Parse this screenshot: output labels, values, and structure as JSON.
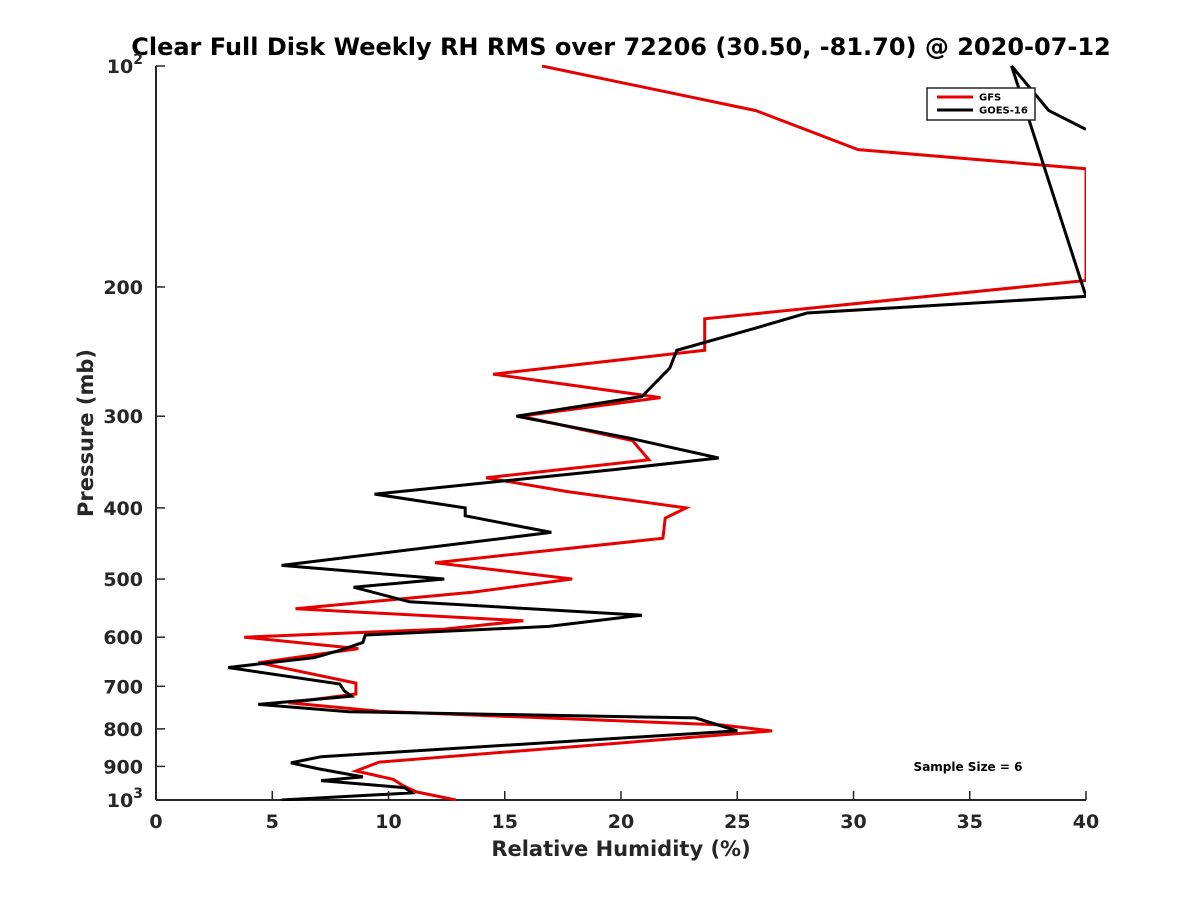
{
  "chart_data": {
    "type": "line",
    "title": "Clear Full Disk Weekly RH RMS over 72206 (30.50, -81.70) @ 2020-07-12",
    "xlabel": "Relative Humidity (%)",
    "ylabel": "Pressure (mb)",
    "xlim": [
      0,
      40
    ],
    "ylim": [
      100,
      1000
    ],
    "y_scale": "log",
    "y_reversed": true,
    "grid": false,
    "legend_position": "top-right",
    "x_ticks": [
      0,
      5,
      10,
      15,
      20,
      25,
      30,
      35,
      40
    ],
    "x_tick_labels": [
      "0",
      "5",
      "10",
      "15",
      "20",
      "25",
      "30",
      "35",
      "40"
    ],
    "y_ticks": [
      100,
      200,
      300,
      400,
      500,
      600,
      700,
      800,
      900,
      1000
    ],
    "y_tick_labels": [
      {
        "base": "10",
        "exp": "2"
      },
      {
        "base": "200",
        "exp": ""
      },
      {
        "base": "300",
        "exp": ""
      },
      {
        "base": "400",
        "exp": ""
      },
      {
        "base": "500",
        "exp": ""
      },
      {
        "base": "600",
        "exp": ""
      },
      {
        "base": "700",
        "exp": ""
      },
      {
        "base": "800",
        "exp": ""
      },
      {
        "base": "900",
        "exp": ""
      },
      {
        "base": "10",
        "exp": "3"
      }
    ],
    "annotation": "Sample Size = 6",
    "series": [
      {
        "name": "GFS",
        "color": "#e60000",
        "points": [
          [
            16.6,
            100
          ],
          [
            25.8,
            115
          ],
          [
            30.2,
            130
          ],
          [
            40.0,
            138
          ],
          [
            40.0,
            196
          ],
          [
            23.6,
            221
          ],
          [
            23.6,
            244
          ],
          [
            14.5,
            263
          ],
          [
            21.7,
            283
          ],
          [
            15.7,
            300
          ],
          [
            20.5,
            324
          ],
          [
            21.2,
            344
          ],
          [
            14.2,
            364
          ],
          [
            17.7,
            380
          ],
          [
            22.8,
            400
          ],
          [
            21.9,
            413
          ],
          [
            21.8,
            440
          ],
          [
            12.0,
            475
          ],
          [
            17.9,
            500
          ],
          [
            13.6,
            521
          ],
          [
            6.0,
            549
          ],
          [
            15.8,
            570
          ],
          [
            12.4,
            585
          ],
          [
            3.8,
            600
          ],
          [
            8.7,
            622
          ],
          [
            4.4,
            650
          ],
          [
            8.6,
            693
          ],
          [
            8.6,
            717
          ],
          [
            5.7,
            737
          ],
          [
            9.6,
            757
          ],
          [
            24.3,
            790
          ],
          [
            26.5,
            805
          ],
          [
            9.6,
            888
          ],
          [
            8.6,
            913
          ],
          [
            10.2,
            937
          ],
          [
            10.6,
            955
          ],
          [
            11.2,
            975
          ],
          [
            12.9,
            1000
          ]
        ]
      },
      {
        "name": "GOES-16",
        "color": "#000000",
        "points": [
          [
            40.0,
            122
          ],
          [
            38.4,
            115
          ],
          [
            36.8,
            100
          ],
          [
            40.0,
            206
          ],
          [
            28.0,
            217
          ],
          [
            25.7,
            228
          ],
          [
            22.4,
            244
          ],
          [
            22.1,
            258
          ],
          [
            20.9,
            282
          ],
          [
            15.5,
            300
          ],
          [
            20.3,
            321
          ],
          [
            24.2,
            342
          ],
          [
            19.6,
            355
          ],
          [
            9.4,
            383
          ],
          [
            13.3,
            400
          ],
          [
            13.3,
            410
          ],
          [
            17.0,
            432
          ],
          [
            5.4,
            479
          ],
          [
            12.4,
            500
          ],
          [
            8.5,
            513
          ],
          [
            10.9,
            537
          ],
          [
            20.9,
            560
          ],
          [
            16.9,
            580
          ],
          [
            9.0,
            596
          ],
          [
            8.9,
            610
          ],
          [
            8.0,
            624
          ],
          [
            6.8,
            640
          ],
          [
            3.1,
            660
          ],
          [
            7.9,
            695
          ],
          [
            8.1,
            710
          ],
          [
            8.4,
            722
          ],
          [
            4.4,
            741
          ],
          [
            8.3,
            758
          ],
          [
            23.2,
            773
          ],
          [
            25.0,
            805
          ],
          [
            7.1,
            873
          ],
          [
            5.8,
            890
          ],
          [
            7.0,
            907
          ],
          [
            8.9,
            930
          ],
          [
            7.1,
            941
          ],
          [
            10.7,
            962
          ],
          [
            11.0,
            978
          ],
          [
            5.4,
            1000
          ]
        ]
      }
    ]
  }
}
